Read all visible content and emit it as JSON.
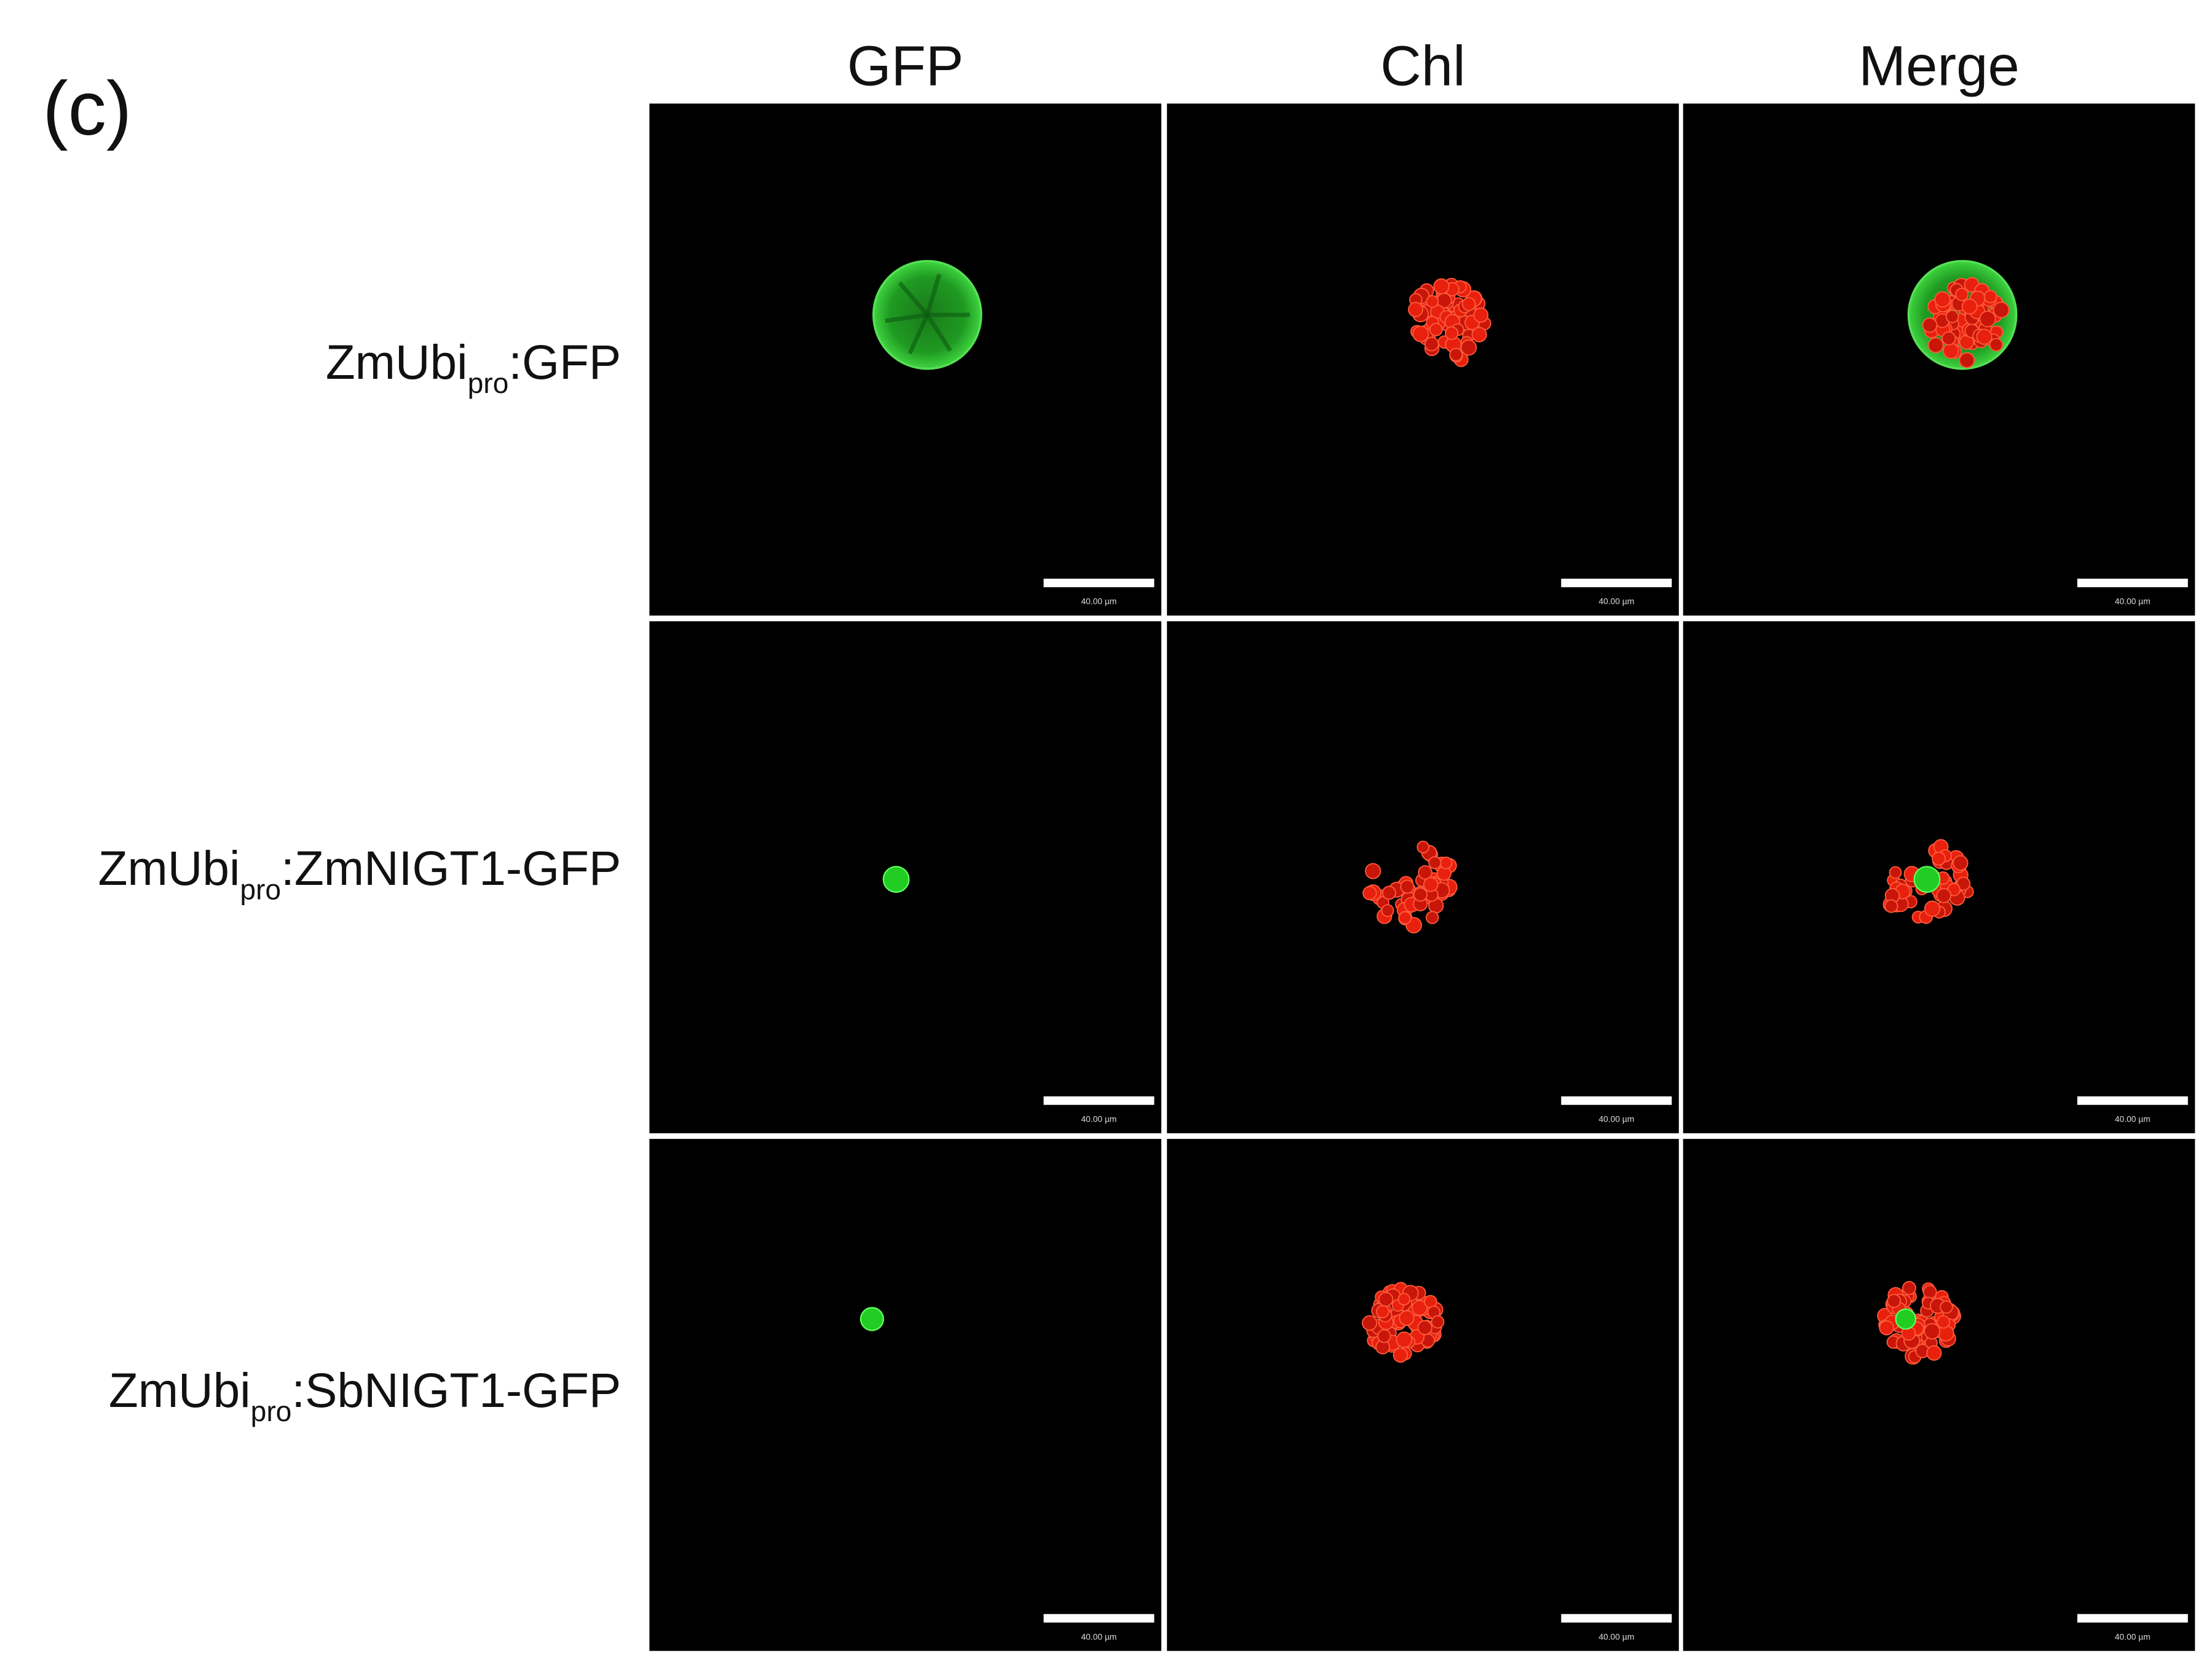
{
  "figure": {
    "panel_label": "(c)",
    "columns": [
      "GFP",
      "Chl",
      "Merge"
    ],
    "rows": [
      {
        "prefix": "ZmUbi",
        "subscript": "pro",
        "suffix": ":GFP"
      },
      {
        "prefix": "ZmUbi",
        "subscript": "pro",
        "suffix": ":ZmNIGT1-GFP"
      },
      {
        "prefix": "ZmUbi",
        "subscript": "pro",
        "suffix": ":SbNIGT1-GFP"
      }
    ],
    "scale_bar_label": "40.00 µm"
  }
}
